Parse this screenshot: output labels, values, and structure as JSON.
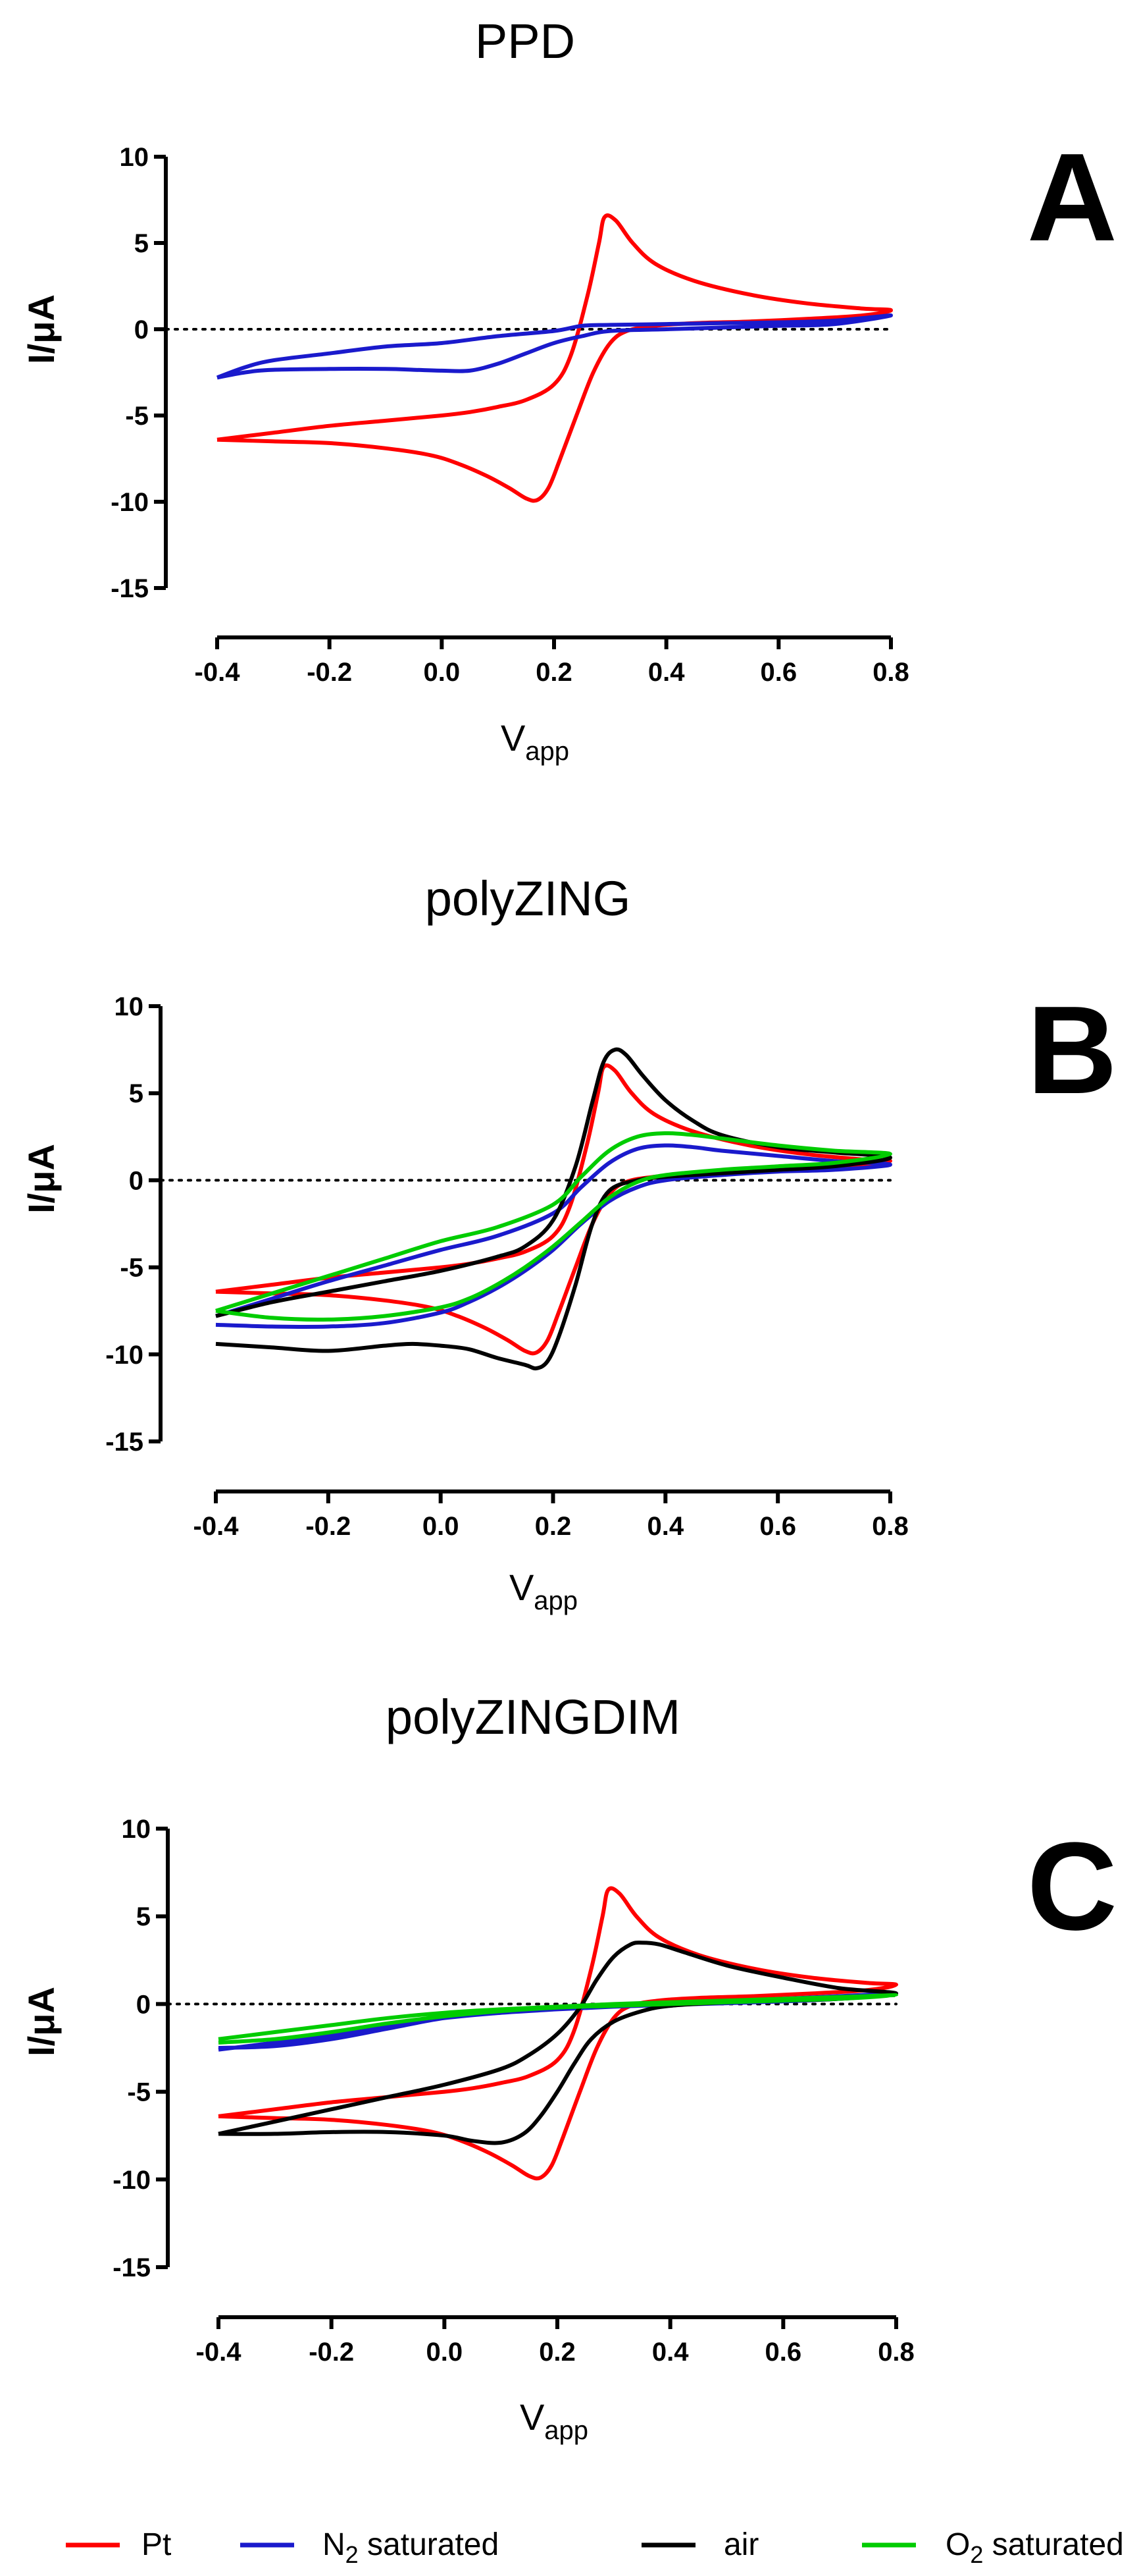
{
  "chart_data": [
    {
      "panel": "A",
      "title": "PPD",
      "type": "line",
      "ylabel": "I/μA",
      "xlabel": {
        "base": "V",
        "sub": "app"
      },
      "xticks": [
        -0.4,
        -0.2,
        0.0,
        0.2,
        0.4,
        0.6,
        0.8
      ],
      "xtick_labels": [
        "-0.4",
        "-0.2",
        "0.0",
        "0.2",
        "0.4",
        "0.6",
        "0.8"
      ],
      "yticks": [
        10,
        5,
        0,
        -5,
        -10,
        -15
      ],
      "ytick_labels": [
        "10",
        "5",
        "0",
        "-5",
        "-10",
        "-15"
      ],
      "xlim": [
        -0.4,
        0.8
      ],
      "ylim": [
        -15,
        10
      ],
      "zero_line": true,
      "series": [
        {
          "name": "Pt",
          "color": "#ff0000",
          "x": [
            -0.4,
            -0.3,
            -0.2,
            -0.1,
            0.0,
            0.05,
            0.1,
            0.15,
            0.2,
            0.23,
            0.26,
            0.28,
            0.29,
            0.31,
            0.34,
            0.38,
            0.45,
            0.55,
            0.65,
            0.75,
            0.8,
            0.75,
            0.65,
            0.55,
            0.45,
            0.38,
            0.33,
            0.3,
            0.27,
            0.24,
            0.21,
            0.19,
            0.17,
            0.15,
            0.12,
            0.08,
            0.03,
            -0.02,
            -0.1,
            -0.2,
            -0.3,
            -0.4
          ],
          "y": [
            -6.4,
            -6.0,
            -5.6,
            -5.3,
            -5.0,
            -4.8,
            -4.5,
            -4.1,
            -3.2,
            -1.5,
            2.0,
            5.0,
            6.5,
            6.3,
            5.0,
            3.8,
            2.8,
            2.0,
            1.5,
            1.2,
            1.1,
            0.8,
            0.6,
            0.45,
            0.35,
            0.2,
            -0.1,
            -0.8,
            -2.5,
            -5.0,
            -7.6,
            -9.2,
            -9.9,
            -9.8,
            -9.2,
            -8.5,
            -7.8,
            -7.3,
            -6.9,
            -6.6,
            -6.5,
            -6.4
          ]
        },
        {
          "name": "N2 saturated",
          "color": "#1a1acc",
          "x": [
            -0.4,
            -0.35,
            -0.3,
            -0.2,
            -0.1,
            0.0,
            0.1,
            0.2,
            0.25,
            0.3,
            0.4,
            0.5,
            0.6,
            0.7,
            0.8,
            0.7,
            0.6,
            0.5,
            0.4,
            0.3,
            0.25,
            0.2,
            0.15,
            0.1,
            0.05,
            0.0,
            -0.05,
            -0.1,
            -0.2,
            -0.3,
            -0.35,
            -0.4
          ],
          "y": [
            -2.8,
            -2.2,
            -1.8,
            -1.4,
            -1.0,
            -0.8,
            -0.4,
            -0.1,
            0.2,
            0.25,
            0.3,
            0.35,
            0.4,
            0.5,
            0.8,
            0.3,
            0.2,
            0.1,
            0.0,
            -0.1,
            -0.4,
            -0.8,
            -1.4,
            -2.0,
            -2.4,
            -2.4,
            -2.35,
            -2.3,
            -2.3,
            -2.35,
            -2.5,
            -2.8
          ]
        }
      ]
    },
    {
      "panel": "B",
      "title": "polyZING",
      "type": "line",
      "ylabel": "I/μA",
      "xlabel": {
        "base": "V",
        "sub": "app"
      },
      "xticks": [
        -0.4,
        -0.2,
        0.0,
        0.2,
        0.4,
        0.6,
        0.8
      ],
      "xtick_labels": [
        "-0.4",
        "-0.2",
        "0.0",
        "0.2",
        "0.4",
        "0.6",
        "0.8"
      ],
      "yticks": [
        10,
        5,
        0,
        -5,
        -10,
        -15
      ],
      "ytick_labels": [
        "10",
        "5",
        "0",
        "-5",
        "-10",
        "-15"
      ],
      "xlim": [
        -0.4,
        0.8
      ],
      "ylim": [
        -15,
        10
      ],
      "zero_line": true,
      "series": [
        {
          "name": "Pt",
          "color": "#ff0000",
          "x": [
            -0.4,
            -0.3,
            -0.2,
            -0.1,
            0.0,
            0.05,
            0.1,
            0.15,
            0.2,
            0.23,
            0.26,
            0.28,
            0.29,
            0.31,
            0.34,
            0.38,
            0.45,
            0.55,
            0.65,
            0.75,
            0.8,
            0.75,
            0.65,
            0.55,
            0.45,
            0.38,
            0.33,
            0.3,
            0.27,
            0.24,
            0.21,
            0.19,
            0.17,
            0.15,
            0.12,
            0.08,
            0.03,
            -0.02,
            -0.1,
            -0.2,
            -0.3,
            -0.4
          ],
          "y": [
            -6.4,
            -6.0,
            -5.6,
            -5.3,
            -5.0,
            -4.8,
            -4.5,
            -4.1,
            -3.2,
            -1.5,
            2.0,
            5.0,
            6.5,
            6.3,
            5.0,
            3.8,
            2.8,
            2.0,
            1.5,
            1.2,
            1.1,
            0.8,
            0.6,
            0.45,
            0.35,
            0.2,
            -0.1,
            -0.8,
            -2.5,
            -5.0,
            -7.6,
            -9.2,
            -9.9,
            -9.8,
            -9.2,
            -8.5,
            -7.8,
            -7.3,
            -6.9,
            -6.6,
            -6.5,
            -6.4
          ]
        },
        {
          "name": "N2 saturated",
          "color": "#1a1acc",
          "x": [
            -0.4,
            -0.3,
            -0.2,
            -0.1,
            0.0,
            0.1,
            0.2,
            0.25,
            0.3,
            0.35,
            0.4,
            0.45,
            0.5,
            0.6,
            0.7,
            0.8,
            0.7,
            0.6,
            0.5,
            0.4,
            0.35,
            0.3,
            0.25,
            0.2,
            0.15,
            0.1,
            0.05,
            0.0,
            -0.1,
            -0.2,
            -0.3,
            -0.4
          ],
          "y": [
            -7.8,
            -6.8,
            -5.8,
            -4.9,
            -4.0,
            -3.2,
            -1.9,
            -0.4,
            1.0,
            1.8,
            2.0,
            1.9,
            1.7,
            1.4,
            1.1,
            0.9,
            0.6,
            0.5,
            0.3,
            0.0,
            -0.4,
            -1.2,
            -2.5,
            -4.0,
            -5.2,
            -6.2,
            -7.0,
            -7.6,
            -8.2,
            -8.4,
            -8.4,
            -8.3
          ]
        },
        {
          "name": "air",
          "color": "#000000",
          "x": [
            -0.4,
            -0.3,
            -0.2,
            -0.1,
            0.0,
            0.1,
            0.15,
            0.2,
            0.24,
            0.27,
            0.29,
            0.31,
            0.33,
            0.36,
            0.4,
            0.45,
            0.5,
            0.6,
            0.7,
            0.8,
            0.7,
            0.6,
            0.5,
            0.4,
            0.35,
            0.3,
            0.27,
            0.24,
            0.21,
            0.19,
            0.17,
            0.15,
            0.1,
            0.05,
            0.0,
            -0.05,
            -0.1,
            -0.2,
            -0.3,
            -0.4
          ],
          "y": [
            -7.8,
            -7.0,
            -6.4,
            -5.8,
            -5.2,
            -4.4,
            -3.8,
            -2.3,
            0.8,
            4.5,
            6.8,
            7.5,
            7.2,
            6.0,
            4.6,
            3.4,
            2.6,
            1.9,
            1.6,
            1.3,
            0.8,
            0.6,
            0.4,
            0.2,
            0.0,
            -0.6,
            -2.5,
            -6.0,
            -9.0,
            -10.4,
            -10.8,
            -10.6,
            -10.2,
            -9.7,
            -9.5,
            -9.4,
            -9.5,
            -9.8,
            -9.6,
            -9.4
          ]
        },
        {
          "name": "O2 saturated",
          "color": "#00cc00",
          "x": [
            -0.4,
            -0.3,
            -0.2,
            -0.1,
            0.0,
            0.1,
            0.2,
            0.25,
            0.3,
            0.35,
            0.4,
            0.45,
            0.5,
            0.6,
            0.7,
            0.8,
            0.7,
            0.6,
            0.5,
            0.4,
            0.35,
            0.3,
            0.25,
            0.2,
            0.15,
            0.1,
            0.05,
            0.0,
            -0.1,
            -0.2,
            -0.3,
            -0.4
          ],
          "y": [
            -7.5,
            -6.5,
            -5.5,
            -4.5,
            -3.5,
            -2.7,
            -1.4,
            0.2,
            1.7,
            2.5,
            2.7,
            2.6,
            2.4,
            2.0,
            1.7,
            1.5,
            1.0,
            0.8,
            0.6,
            0.3,
            -0.1,
            -1.0,
            -2.4,
            -3.8,
            -5.0,
            -6.0,
            -6.8,
            -7.3,
            -7.8,
            -8.0,
            -7.9,
            -7.5
          ]
        }
      ]
    },
    {
      "panel": "C",
      "title": "polyZINGDIM",
      "type": "line",
      "ylabel": "I/μA",
      "xlabel": {
        "base": "V",
        "sub": "app"
      },
      "xticks": [
        -0.4,
        -0.2,
        0.0,
        0.2,
        0.4,
        0.6,
        0.8
      ],
      "xtick_labels": [
        "-0.4",
        "-0.2",
        "0.0",
        "0.2",
        "0.4",
        "0.6",
        "0.8"
      ],
      "yticks": [
        10,
        5,
        0,
        -5,
        -10,
        -15
      ],
      "ytick_labels": [
        "10",
        "5",
        "0",
        "-5",
        "-10",
        "-15"
      ],
      "xlim": [
        -0.4,
        0.8
      ],
      "ylim": [
        -15,
        10
      ],
      "zero_line": true,
      "series": [
        {
          "name": "Pt",
          "color": "#ff0000",
          "x": [
            -0.4,
            -0.3,
            -0.2,
            -0.1,
            0.0,
            0.05,
            0.1,
            0.15,
            0.2,
            0.23,
            0.26,
            0.28,
            0.29,
            0.31,
            0.34,
            0.38,
            0.45,
            0.55,
            0.65,
            0.75,
            0.8,
            0.75,
            0.65,
            0.55,
            0.45,
            0.38,
            0.33,
            0.3,
            0.27,
            0.24,
            0.21,
            0.19,
            0.17,
            0.15,
            0.12,
            0.08,
            0.03,
            -0.02,
            -0.1,
            -0.2,
            -0.3,
            -0.4
          ],
          "y": [
            -6.4,
            -6.0,
            -5.6,
            -5.3,
            -5.0,
            -4.8,
            -4.5,
            -4.1,
            -3.2,
            -1.5,
            2.0,
            5.0,
            6.5,
            6.3,
            5.0,
            3.8,
            2.8,
            2.0,
            1.5,
            1.2,
            1.1,
            0.8,
            0.6,
            0.45,
            0.35,
            0.2,
            -0.1,
            -0.8,
            -2.5,
            -5.0,
            -7.6,
            -9.2,
            -9.9,
            -9.8,
            -9.2,
            -8.5,
            -7.8,
            -7.3,
            -6.9,
            -6.6,
            -6.5,
            -6.4
          ]
        },
        {
          "name": "N2 saturated",
          "color": "#1a1acc",
          "x": [
            -0.4,
            -0.3,
            -0.2,
            -0.1,
            0.0,
            0.1,
            0.2,
            0.3,
            0.4,
            0.5,
            0.6,
            0.7,
            0.8,
            0.7,
            0.6,
            0.5,
            0.4,
            0.3,
            0.2,
            0.1,
            0.0,
            -0.1,
            -0.2,
            -0.3,
            -0.4
          ],
          "y": [
            -2.6,
            -2.2,
            -1.8,
            -1.3,
            -0.8,
            -0.5,
            -0.3,
            -0.1,
            0.05,
            0.15,
            0.3,
            0.45,
            0.6,
            0.3,
            0.15,
            0.05,
            -0.05,
            -0.15,
            -0.3,
            -0.5,
            -0.8,
            -1.4,
            -2.0,
            -2.4,
            -2.5
          ]
        },
        {
          "name": "air",
          "color": "#000000",
          "x": [
            -0.4,
            -0.3,
            -0.2,
            -0.1,
            0.0,
            0.1,
            0.15,
            0.2,
            0.24,
            0.27,
            0.3,
            0.33,
            0.35,
            0.38,
            0.42,
            0.5,
            0.6,
            0.7,
            0.8,
            0.7,
            0.6,
            0.5,
            0.4,
            0.35,
            0.3,
            0.26,
            0.23,
            0.2,
            0.17,
            0.14,
            0.1,
            0.05,
            0.0,
            -0.1,
            -0.2,
            -0.3,
            -0.4
          ],
          "y": [
            -7.4,
            -6.7,
            -6.0,
            -5.3,
            -4.6,
            -3.7,
            -2.9,
            -1.7,
            -0.2,
            1.4,
            2.7,
            3.4,
            3.5,
            3.4,
            3.0,
            2.2,
            1.5,
            0.9,
            0.6,
            0.3,
            0.2,
            0.1,
            -0.1,
            -0.4,
            -1.0,
            -2.0,
            -3.4,
            -5.0,
            -6.4,
            -7.4,
            -7.9,
            -7.8,
            -7.5,
            -7.3,
            -7.3,
            -7.4,
            -7.4
          ]
        },
        {
          "name": "O2 saturated",
          "color": "#00cc00",
          "x": [
            -0.4,
            -0.3,
            -0.2,
            -0.1,
            0.0,
            0.1,
            0.2,
            0.3,
            0.4,
            0.5,
            0.6,
            0.7,
            0.8,
            0.7,
            0.6,
            0.5,
            0.4,
            0.3,
            0.2,
            0.1,
            0.0,
            -0.1,
            -0.2,
            -0.3,
            -0.4
          ],
          "y": [
            -2.0,
            -1.6,
            -1.2,
            -0.8,
            -0.5,
            -0.3,
            -0.15,
            0.0,
            0.1,
            0.2,
            0.3,
            0.4,
            0.5,
            0.3,
            0.2,
            0.1,
            0.0,
            -0.1,
            -0.2,
            -0.4,
            -0.7,
            -1.1,
            -1.6,
            -2.0,
            -2.2
          ]
        }
      ]
    }
  ],
  "legend": {
    "position": "bottom",
    "items": [
      {
        "base": "Pt",
        "sub": "",
        "rest": "",
        "color": "#ff0000"
      },
      {
        "base": "N",
        "sub": "2",
        "rest": " saturated",
        "color": "#1a1acc"
      },
      {
        "base": "air",
        "sub": "",
        "rest": "",
        "color": "#000000"
      },
      {
        "base": "O",
        "sub": "2",
        "rest": " saturated",
        "color": "#00cc00"
      }
    ]
  }
}
